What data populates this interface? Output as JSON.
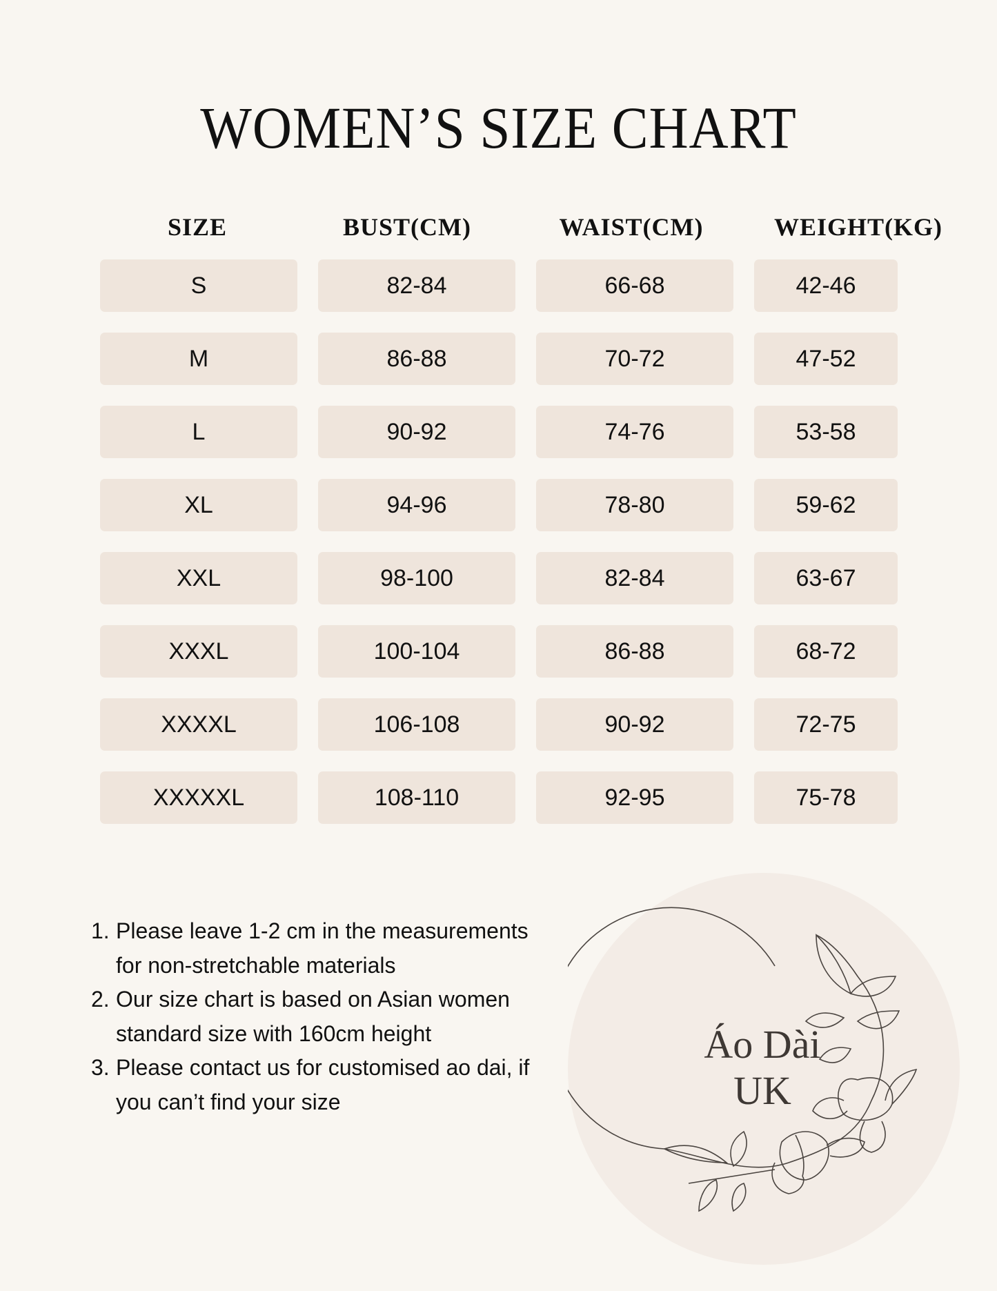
{
  "title": "WOMEN’S SIZE CHART",
  "table": {
    "headers": [
      "SIZE",
      "BUST(CM)",
      "WAIST(CM)",
      "WEIGHT(KG)"
    ],
    "rows": [
      [
        "S",
        "82-84",
        "66-68",
        "42-46"
      ],
      [
        "M",
        "86-88",
        "70-72",
        "47-52"
      ],
      [
        "L",
        "90-92",
        "74-76",
        "53-58"
      ],
      [
        "XL",
        "94-96",
        "78-80",
        "59-62"
      ],
      [
        "XXL",
        "98-100",
        "82-84",
        "63-67"
      ],
      [
        "XXXL",
        "100-104",
        "86-88",
        "68-72"
      ],
      [
        "XXXXL",
        "106-108",
        "90-92",
        "72-75"
      ],
      [
        "XXXXXL",
        "108-110",
        "92-95",
        "75-78"
      ]
    ]
  },
  "notes": [
    {
      "num": "1.",
      "text": "Please leave 1-2 cm in the measurements for non-stretchable materials"
    },
    {
      "num": "2.",
      "text": "Our size chart is based on Asian women standard size with 160cm height"
    },
    {
      "num": "3.",
      "text": "Please contact us for customised ao dai, if you can’t find your size"
    }
  ],
  "logo": {
    "line1": "Áo Dài",
    "line2": "UK"
  },
  "colors": {
    "background": "#f9f6f1",
    "cell": "#efe5dc",
    "logo_circle": "#f3ece6",
    "logo_text": "#3e3834"
  }
}
